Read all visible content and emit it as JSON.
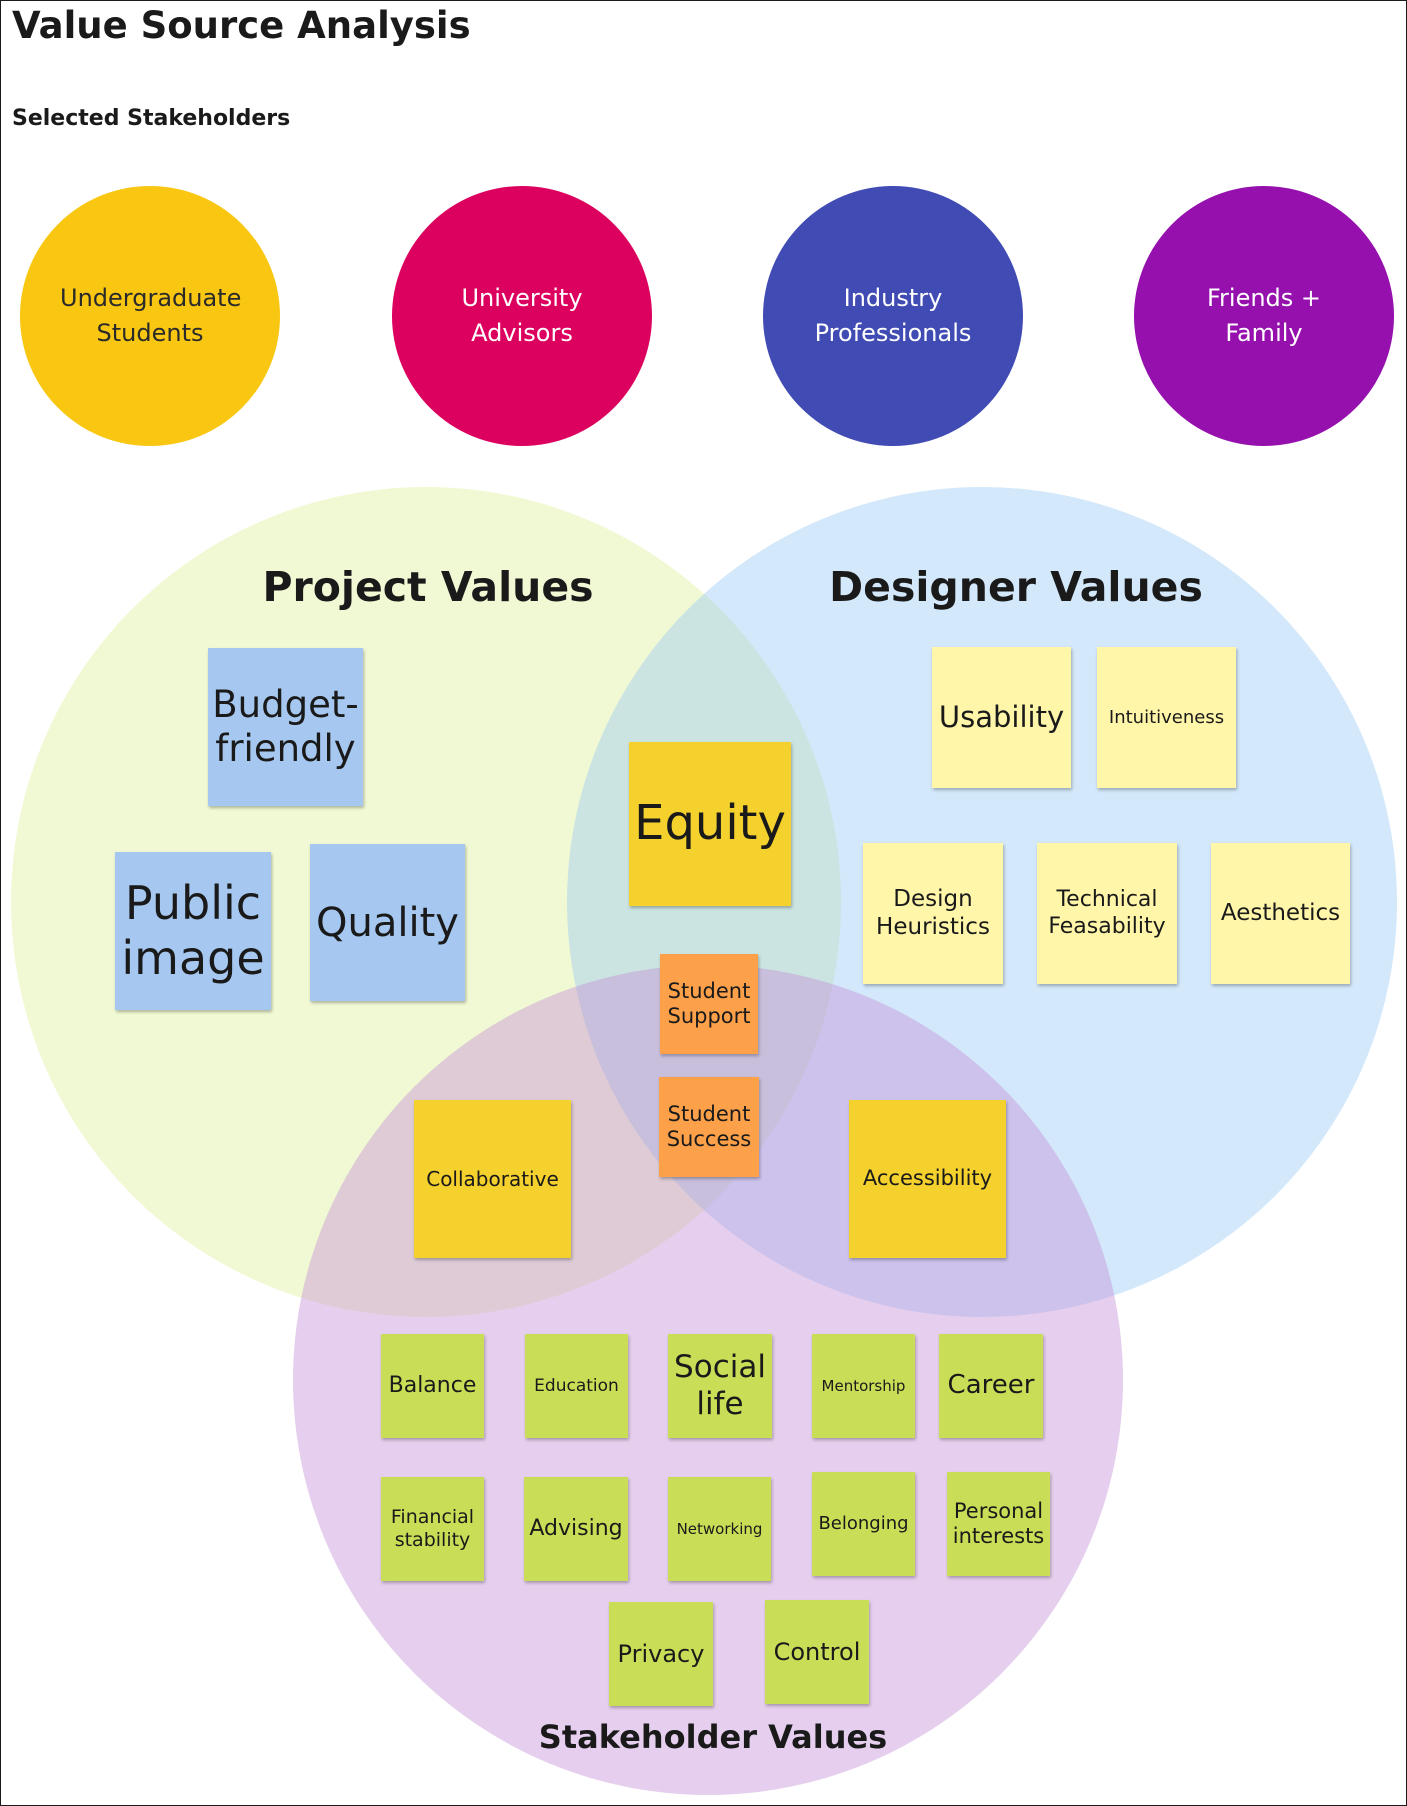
{
  "page": {
    "title": "Value Source Analysis",
    "subtitle": "Selected Stakeholders"
  },
  "stakeholders": [
    {
      "label": "Undergraduate Students",
      "color": "#f9c712"
    },
    {
      "label": "University Advisors",
      "color": "#dc015f"
    },
    {
      "label": "Industry Professionals",
      "color": "#404bb3"
    },
    {
      "label": "Friends + Family",
      "color": "#9510ad"
    }
  ],
  "venn": {
    "project": {
      "label": "Project Values",
      "color": "#f0f8d4"
    },
    "designer": {
      "label": "Designer Values",
      "color": "#d2e6fa"
    },
    "stakeholder": {
      "label": "Stakeholder Values",
      "color": "#e2c8ec"
    }
  },
  "notes": {
    "budget_friendly": "Budget-friendly",
    "public_image": "Public image",
    "quality": "Quality",
    "equity": "Equity",
    "usability": "Usability",
    "intuitiveness": "Intuitiveness",
    "design_heuristics": "Design Heuristics",
    "technical_feasability": "Technical Feasability",
    "aesthetics": "Aesthetics",
    "student_support": "Student Support",
    "student_success": "Student Success",
    "collaborative": "Collaborative",
    "accessibility": "Accessibility",
    "balance": "Balance",
    "education": "Education",
    "social_life": "Social life",
    "mentorship": "Mentorship",
    "career": "Career",
    "financial_stability": "Financial stability",
    "advising": "Advising",
    "networking": "Networking",
    "belonging": "Belonging",
    "personal_interests": "Personal interests",
    "privacy": "Privacy",
    "control": "Control"
  }
}
